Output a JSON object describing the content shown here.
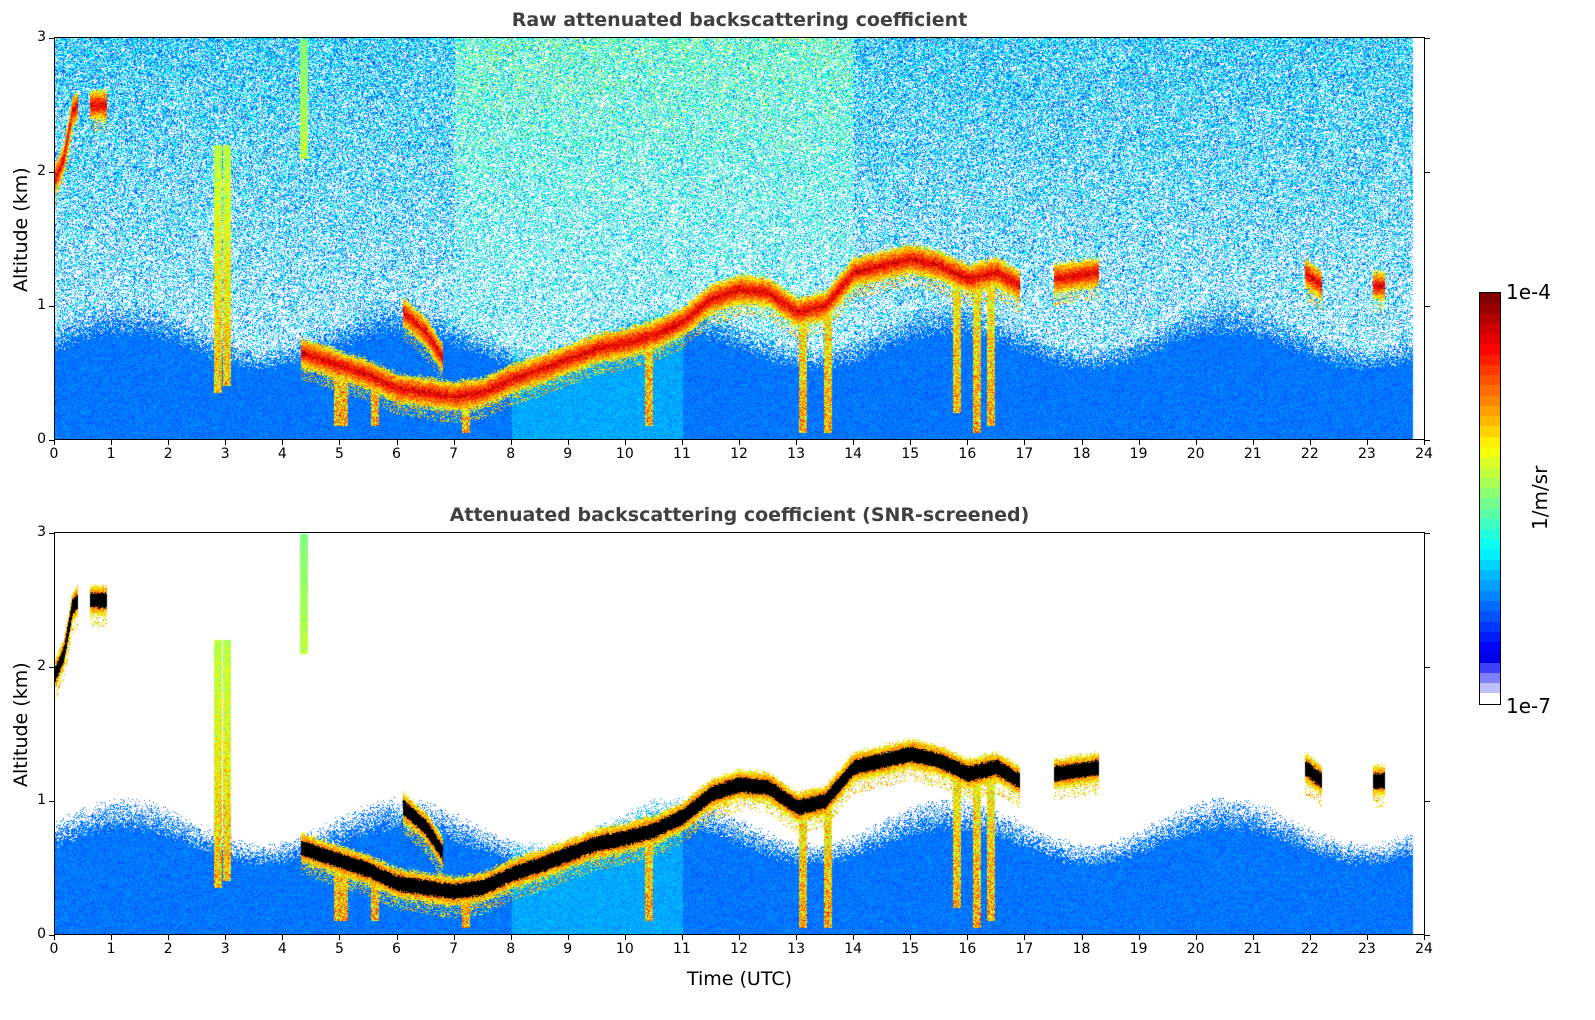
{
  "chart_data": [
    {
      "type": "heatmap",
      "title": "Raw attenuated backscattering coefficient",
      "xlabel": "",
      "ylabel": "Altitude (km)",
      "xlim": [
        0,
        24
      ],
      "ylim": [
        0,
        3
      ],
      "xticks": [
        0,
        1,
        2,
        3,
        4,
        5,
        6,
        7,
        8,
        9,
        10,
        11,
        12,
        13,
        14,
        15,
        16,
        17,
        18,
        19,
        20,
        21,
        22,
        23,
        24
      ],
      "yticks": [
        0,
        1,
        2,
        3
      ],
      "screened": false
    },
    {
      "type": "heatmap",
      "title": "Attenuated backscattering coefficient (SNR-screened)",
      "xlabel": "Time (UTC)",
      "ylabel": "Altitude (km)",
      "xlim": [
        0,
        24
      ],
      "ylim": [
        0,
        3
      ],
      "xticks": [
        0,
        1,
        2,
        3,
        4,
        5,
        6,
        7,
        8,
        9,
        10,
        11,
        12,
        13,
        14,
        15,
        16,
        17,
        18,
        19,
        20,
        21,
        22,
        23,
        24
      ],
      "yticks": [
        0,
        1,
        2,
        3
      ],
      "screened": true
    }
  ],
  "shared": {
    "data_end_hour": 23.8,
    "cloud_layers": [
      [
        [
          0,
          1.95
        ],
        [
          0.15,
          2.1
        ],
        [
          0.3,
          2.45
        ],
        [
          0.4,
          2.5
        ]
      ],
      [
        [
          0.6,
          2.5
        ],
        [
          0.9,
          2.5
        ]
      ],
      [
        [
          4.3,
          0.65
        ],
        [
          5,
          0.55
        ],
        [
          5.5,
          0.48
        ],
        [
          6,
          0.38
        ],
        [
          6.5,
          0.35
        ],
        [
          7,
          0.32
        ],
        [
          7.5,
          0.35
        ],
        [
          8,
          0.45
        ],
        [
          8.5,
          0.52
        ],
        [
          9,
          0.6
        ],
        [
          9.5,
          0.68
        ],
        [
          10,
          0.72
        ],
        [
          10.5,
          0.78
        ],
        [
          11,
          0.88
        ],
        [
          11.5,
          1.05
        ],
        [
          12,
          1.12
        ],
        [
          12.5,
          1.1
        ],
        [
          13,
          0.95
        ],
        [
          13.5,
          1.0
        ],
        [
          14,
          1.25
        ],
        [
          14.5,
          1.3
        ],
        [
          15,
          1.35
        ],
        [
          15.5,
          1.3
        ],
        [
          16,
          1.2
        ],
        [
          16.5,
          1.25
        ],
        [
          16.9,
          1.15
        ]
      ],
      [
        [
          6.1,
          0.95
        ],
        [
          6.5,
          0.8
        ],
        [
          6.8,
          0.6
        ]
      ],
      [
        [
          17.5,
          1.2
        ],
        [
          18.3,
          1.25
        ]
      ],
      [
        [
          21.9,
          1.25
        ],
        [
          22.2,
          1.15
        ]
      ],
      [
        [
          23.1,
          1.15
        ],
        [
          23.3,
          1.15
        ]
      ]
    ],
    "fall_streaks": [
      [
        2.85,
        0.35
      ],
      [
        3.0,
        0.4
      ],
      [
        4.35,
        2.1
      ],
      [
        4.95,
        0.1
      ],
      [
        5.05,
        0.1
      ],
      [
        5.6,
        0.1
      ],
      [
        13.1,
        0.05
      ],
      [
        13.55,
        0.05
      ],
      [
        15.8,
        0.2
      ],
      [
        16.15,
        0.05
      ],
      [
        16.4,
        0.1
      ],
      [
        7.2,
        0.05
      ],
      [
        10.4,
        0.1
      ]
    ],
    "colorbar": {
      "label": "1/m/sr",
      "max_label": "1e-4",
      "min_label": "1e-7",
      "log_min": -7,
      "log_max": -4,
      "colormap": "jet"
    }
  }
}
